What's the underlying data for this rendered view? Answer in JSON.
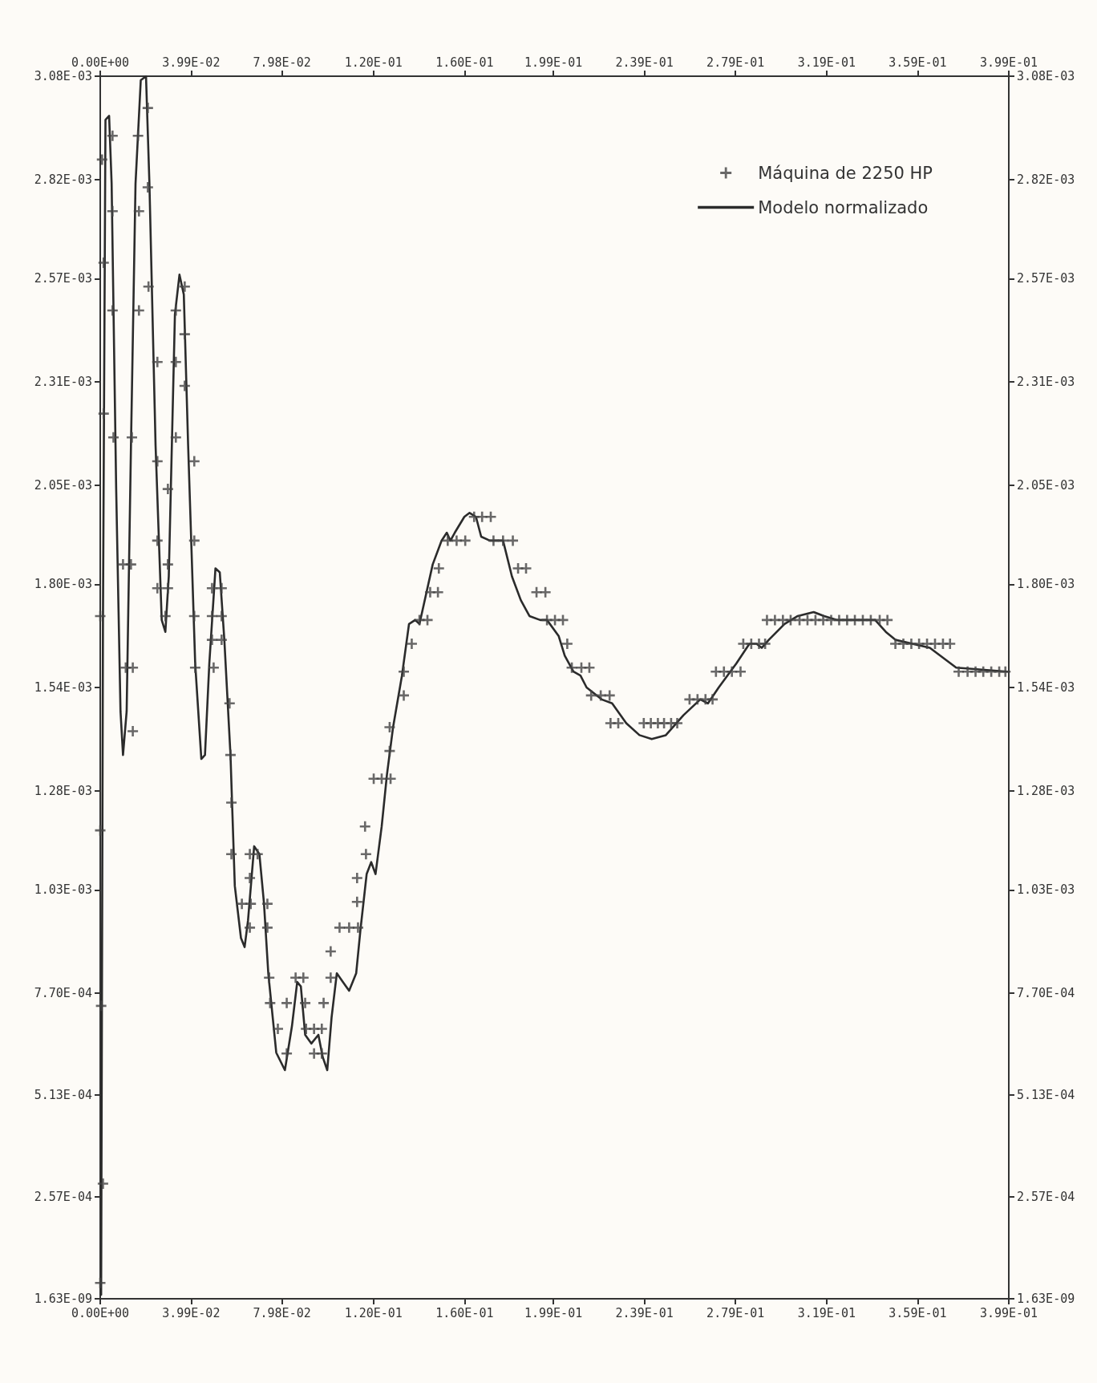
{
  "chart_data": {
    "type": "line",
    "xlim": [
      0,
      0.399
    ],
    "ylim": [
      1.63e-09,
      0.00308
    ],
    "x2lim": [
      0,
      0.399
    ],
    "y2lim": [
      1.63e-09,
      0.00308
    ],
    "xticks": [
      {
        "value": 0,
        "label": "0.00E+00"
      },
      {
        "value": 0.0399,
        "label": "3.99E-02"
      },
      {
        "value": 0.0798,
        "label": "7.98E-02"
      },
      {
        "value": 0.12,
        "label": "1.20E-01"
      },
      {
        "value": 0.16,
        "label": "1.60E-01"
      },
      {
        "value": 0.199,
        "label": "1.99E-01"
      },
      {
        "value": 0.239,
        "label": "2.39E-01"
      },
      {
        "value": 0.279,
        "label": "2.79E-01"
      },
      {
        "value": 0.319,
        "label": "3.19E-01"
      },
      {
        "value": 0.359,
        "label": "3.59E-01"
      },
      {
        "value": 0.399,
        "label": "3.99E-01"
      }
    ],
    "x2ticks": [
      {
        "value": 0,
        "label": "0.00E+00"
      },
      {
        "value": 0.0399,
        "label": "3.99E-02"
      },
      {
        "value": 0.0798,
        "label": "7.98E-02"
      },
      {
        "value": 0.12,
        "label": "1.20E-01"
      },
      {
        "value": 0.16,
        "label": "1.60E-01"
      },
      {
        "value": 0.199,
        "label": "1.99E-01"
      },
      {
        "value": 0.239,
        "label": "2.39E-01"
      },
      {
        "value": 0.279,
        "label": "2.79E-01"
      },
      {
        "value": 0.319,
        "label": "3.19E-01"
      },
      {
        "value": 0.359,
        "label": "3.59E-01"
      },
      {
        "value": 0.399,
        "label": "3.99E-01"
      }
    ],
    "yticks": [
      {
        "value": 1.63e-09,
        "label": "1.63E-09"
      },
      {
        "value": 0.000257,
        "label": "2.57E-04"
      },
      {
        "value": 0.000513,
        "label": "5.13E-04"
      },
      {
        "value": 0.00077,
        "label": "7.70E-04"
      },
      {
        "value": 0.00103,
        "label": "1.03E-03"
      },
      {
        "value": 0.00128,
        "label": "1.28E-03"
      },
      {
        "value": 0.00154,
        "label": "1.54E-03"
      },
      {
        "value": 0.0018,
        "label": "1.80E-03"
      },
      {
        "value": 0.00205,
        "label": "2.05E-03"
      },
      {
        "value": 0.00231,
        "label": "2.31E-03"
      },
      {
        "value": 0.00257,
        "label": "2.57E-03"
      },
      {
        "value": 0.00282,
        "label": "2.82E-03"
      },
      {
        "value": 0.00308,
        "label": "3.08E-03"
      }
    ],
    "y2ticks": [
      {
        "value": 1.63e-09,
        "label": "1.63E-09"
      },
      {
        "value": 0.000257,
        "label": "2.57E-04"
      },
      {
        "value": 0.000513,
        "label": "5.13E-04"
      },
      {
        "value": 0.00077,
        "label": "7.70E-04"
      },
      {
        "value": 0.00103,
        "label": "1.03E-03"
      },
      {
        "value": 0.00128,
        "label": "1.28E-03"
      },
      {
        "value": 0.00154,
        "label": "1.54E-03"
      },
      {
        "value": 0.0018,
        "label": "1.80E-03"
      },
      {
        "value": 0.00205,
        "label": "2.05E-03"
      },
      {
        "value": 0.00231,
        "label": "2.31E-03"
      },
      {
        "value": 0.00257,
        "label": "2.57E-03"
      },
      {
        "value": 0.00282,
        "label": "2.82E-03"
      },
      {
        "value": 0.00308,
        "label": "3.08E-03"
      }
    ],
    "grid": false,
    "legend": "top right",
    "series": [
      {
        "name": "Máquina de 2250 HP",
        "type": "scatter",
        "marker": "cross",
        "color": "#444444",
        "x": [
          0,
          0.0012,
          0.0004,
          0,
          0,
          0.0008,
          0.0015,
          0.0015,
          0.0054,
          0.0054,
          0.0054,
          0.0058,
          0.01,
          0.0135,
          0.0112,
          0.0143,
          0.0143,
          0.0209,
          0.0166,
          0.0209,
          0.017,
          0.0212,
          0.017,
          0.0251,
          0.0139,
          0.0251,
          0.0297,
          0.0251,
          0.0297,
          0.0251,
          0.0297,
          0.0286,
          0.0332,
          0.0371,
          0.0371,
          0.0332,
          0.0371,
          0.0332,
          0.0413,
          0.0413,
          0.0413,
          0.0417,
          0.0491,
          0.0533,
          0.0491,
          0.0533,
          0.0491,
          0.0533,
          0.0498,
          0.0568,
          0.0572,
          0.0576,
          0.0576,
          0.0657,
          0.0691,
          0.0657,
          0.0622,
          0.0661,
          0.0734,
          0.0657,
          0.0734,
          0.0742,
          0.0746,
          0.078,
          0.0819,
          0.0819,
          0.0858,
          0.0892,
          0.09,
          0.0904,
          0.0939,
          0.0973,
          0.0939,
          0.0973,
          0.0981,
          0.1012,
          0.1012,
          0.1051,
          0.1093,
          0.1132,
          0.1128,
          0.1128,
          0.1167,
          0.1163,
          0.1201,
          0.1236,
          0.1275,
          0.1271,
          0.1271,
          0.1333,
          0.1333,
          0.1368,
          0.1402,
          0.1437,
          0.1449,
          0.1483,
          0.1487,
          0.1526,
          0.1565,
          0.1603,
          0.1642,
          0.1677,
          0.1715,
          0.1727,
          0.1769,
          0.1812,
          0.1835,
          0.187,
          0.1916,
          0.1955,
          0.1962,
          0.1997,
          0.2032,
          0.2051,
          0.2071,
          0.2113,
          0.2148,
          0.2156,
          0.2198,
          0.2237,
          0.2241,
          0.2275,
          0.2387,
          0.2418,
          0.2449,
          0.2476,
          0.2507,
          0.2534,
          0.2588,
          0.2623,
          0.2658,
          0.2689,
          0.2704,
          0.2739,
          0.2774,
          0.2812,
          0.2824,
          0.2859,
          0.2893,
          0.292,
          0.2928,
          0.2963,
          0.2998,
          0.3032,
          0.3071,
          0.3106,
          0.3141,
          0.3175,
          0.321,
          0.3245,
          0.328,
          0.3314,
          0.3349,
          0.3384,
          0.3423,
          0.3457,
          0.3492,
          0.3527,
          0.3562,
          0.3596,
          0.3631,
          0.3666,
          0.3701,
          0.3732,
          0.377,
          0.3809,
          0.3844,
          0.3878,
          0.3913,
          0.3948,
          0.3975
        ],
        "values": [
          4e-05,
          0.00029,
          0.000738,
          0.00118,
          0.00172,
          0.00287,
          0.00261,
          0.00223,
          0.00293,
          0.00274,
          0.00249,
          0.00217,
          0.00185,
          0.00185,
          0.00159,
          0.00159,
          0.00143,
          0.003,
          0.00293,
          0.0028,
          0.00274,
          0.00255,
          0.00249,
          0.00236,
          0.00217,
          0.00211,
          0.00204,
          0.00191,
          0.00185,
          0.00179,
          0.00179,
          0.00172,
          0.00249,
          0.00255,
          0.00243,
          0.00236,
          0.0023,
          0.00217,
          0.00211,
          0.00191,
          0.00172,
          0.00159,
          0.00179,
          0.00179,
          0.00172,
          0.00172,
          0.00166,
          0.00166,
          0.00159,
          0.0015,
          0.00137,
          0.00125,
          0.00112,
          0.00112,
          0.00112,
          0.00106,
          0.000995,
          0.000995,
          0.000995,
          0.000935,
          0.000935,
          0.000809,
          0.000745,
          0.00068,
          0.000618,
          0.000745,
          0.000809,
          0.000809,
          0.000745,
          0.00068,
          0.00068,
          0.00068,
          0.000618,
          0.000618,
          0.000745,
          0.000809,
          0.000875,
          0.000935,
          0.000935,
          0.000935,
          0.001,
          0.00106,
          0.00112,
          0.00119,
          0.00131,
          0.00131,
          0.00131,
          0.00138,
          0.00144,
          0.00152,
          0.00158,
          0.00165,
          0.00171,
          0.00171,
          0.00178,
          0.00178,
          0.00184,
          0.00191,
          0.00191,
          0.00191,
          0.00197,
          0.00197,
          0.00197,
          0.00191,
          0.00191,
          0.00191,
          0.00184,
          0.00184,
          0.00178,
          0.00178,
          0.00171,
          0.00171,
          0.00171,
          0.00165,
          0.00159,
          0.00159,
          0.00159,
          0.00152,
          0.00152,
          0.00152,
          0.00145,
          0.00145,
          0.00145,
          0.00145,
          0.00145,
          0.00145,
          0.00145,
          0.00145,
          0.00151,
          0.00151,
          0.00151,
          0.00151,
          0.00158,
          0.00158,
          0.00158,
          0.00158,
          0.00165,
          0.00165,
          0.00165,
          0.00165,
          0.00171,
          0.00171,
          0.00171,
          0.00171,
          0.00171,
          0.00171,
          0.00171,
          0.00171,
          0.00171,
          0.00171,
          0.00171,
          0.00171,
          0.00171,
          0.00171,
          0.00171,
          0.00171,
          0.00165,
          0.00165,
          0.00165,
          0.00165,
          0.00165,
          0.00165,
          0.00165,
          0.00165,
          0.00158,
          0.00158,
          0.00158,
          0.00158,
          0.00158,
          0.00158,
          0.00158
        ]
      },
      {
        "name": "Modelo normalizado",
        "marker": "none",
        "line_style": "solid",
        "color": "#2b2b2b",
        "x": [
          0.0004,
          0.0012,
          0.0023,
          0.0039,
          0.005,
          0.007,
          0.0089,
          0.01,
          0.0116,
          0.0135,
          0.0155,
          0.0178,
          0.0201,
          0.0216,
          0.0243,
          0.027,
          0.0286,
          0.0301,
          0.0328,
          0.0348,
          0.0367,
          0.0386,
          0.0417,
          0.0444,
          0.046,
          0.0479,
          0.0506,
          0.0525,
          0.0545,
          0.0572,
          0.0591,
          0.0618,
          0.0634,
          0.0649,
          0.0676,
          0.0699,
          0.0719,
          0.0738,
          0.0773,
          0.0811,
          0.0842,
          0.0865,
          0.0881,
          0.09,
          0.0927,
          0.0958,
          0.0977,
          0.0997,
          0.1016,
          0.1039,
          0.1066,
          0.1093,
          0.1124,
          0.1143,
          0.117,
          0.119,
          0.1209,
          0.1236,
          0.1259,
          0.1286,
          0.1325,
          0.1356,
          0.1383,
          0.1402,
          0.1429,
          0.146,
          0.1499,
          0.1522,
          0.1538,
          0.1557,
          0.1599,
          0.1622,
          0.165,
          0.1673,
          0.1711,
          0.1769,
          0.1808,
          0.1847,
          0.1885,
          0.1932,
          0.1962,
          0.2013,
          0.204,
          0.2078,
          0.2109,
          0.2136,
          0.2202,
          0.2248,
          0.231,
          0.2368,
          0.2422,
          0.2484,
          0.2561,
          0.2635,
          0.2669,
          0.2716,
          0.2793,
          0.2851,
          0.2882,
          0.2905,
          0.2936,
          0.3005,
          0.3063,
          0.3133,
          0.3179,
          0.3237,
          0.3403,
          0.345,
          0.3492,
          0.3643,
          0.3759,
          0.3983
        ],
        "values": [
          1e-05,
          0.00171,
          0.00297,
          0.00298,
          0.00281,
          0.00204,
          0.00148,
          0.00137,
          0.00148,
          0.00215,
          0.00281,
          0.00307,
          0.00308,
          0.00281,
          0.00215,
          0.00171,
          0.00168,
          0.00182,
          0.00248,
          0.00258,
          0.00253,
          0.00215,
          0.0016,
          0.00136,
          0.00137,
          0.0016,
          0.00184,
          0.00183,
          0.00166,
          0.00137,
          0.00104,
          0.000909,
          0.000886,
          0.000953,
          0.00114,
          0.00112,
          0.000997,
          0.00082,
          0.00062,
          0.000576,
          0.000687,
          0.000798,
          0.000787,
          0.000665,
          0.000643,
          0.000665,
          0.000609,
          0.000576,
          0.000709,
          0.00082,
          0.000798,
          0.000776,
          0.00082,
          0.000931,
          0.00107,
          0.0011,
          0.00107,
          0.00119,
          0.00132,
          0.00144,
          0.00157,
          0.0017,
          0.00171,
          0.0017,
          0.00177,
          0.00185,
          0.00191,
          0.00193,
          0.00191,
          0.00193,
          0.00197,
          0.00198,
          0.00197,
          0.00192,
          0.00191,
          0.00191,
          0.00182,
          0.00176,
          0.00172,
          0.00171,
          0.00171,
          0.00167,
          0.00162,
          0.00158,
          0.00157,
          0.00154,
          0.00151,
          0.0015,
          0.00145,
          0.00142,
          0.00141,
          0.00142,
          0.00147,
          0.00151,
          0.0015,
          0.00154,
          0.0016,
          0.00165,
          0.00165,
          0.00164,
          0.00166,
          0.0017,
          0.00172,
          0.00173,
          0.00172,
          0.00171,
          0.00171,
          0.00168,
          0.00166,
          0.00164,
          0.00159,
          0.00158
        ]
      }
    ]
  }
}
